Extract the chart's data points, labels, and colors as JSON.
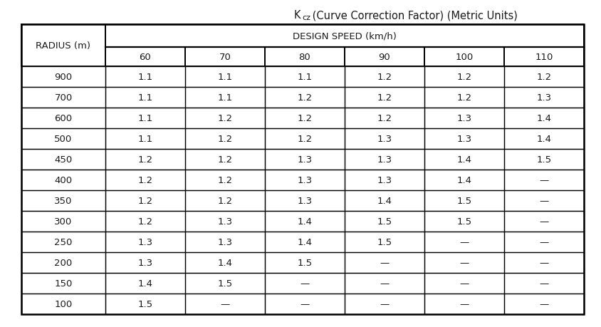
{
  "title_parts": [
    "K",
    "cz",
    " (Curve Correction Factor) (Metric Units)"
  ],
  "header_row1": "DESIGN SPEED (km/h)",
  "header_col": "RADIUS (m)",
  "speed_headers": [
    "60",
    "70",
    "80",
    "90",
    "100",
    "110"
  ],
  "radii": [
    "900",
    "700",
    "600",
    "500",
    "450",
    "400",
    "350",
    "300",
    "250",
    "200",
    "150",
    "100"
  ],
  "table_data": [
    [
      "1.1",
      "1.1",
      "1.1",
      "1.2",
      "1.2",
      "1.2"
    ],
    [
      "1.1",
      "1.1",
      "1.2",
      "1.2",
      "1.2",
      "1.3"
    ],
    [
      "1.1",
      "1.2",
      "1.2",
      "1.2",
      "1.3",
      "1.4"
    ],
    [
      "1.1",
      "1.2",
      "1.2",
      "1.3",
      "1.3",
      "1.4"
    ],
    [
      "1.2",
      "1.2",
      "1.3",
      "1.3",
      "1.4",
      "1.5"
    ],
    [
      "1.2",
      "1.2",
      "1.3",
      "1.3",
      "1.4",
      "—"
    ],
    [
      "1.2",
      "1.2",
      "1.3",
      "1.4",
      "1.5",
      "—"
    ],
    [
      "1.2",
      "1.3",
      "1.4",
      "1.5",
      "1.5",
      "—"
    ],
    [
      "1.3",
      "1.3",
      "1.4",
      "1.5",
      "—",
      "—"
    ],
    [
      "1.3",
      "1.4",
      "1.5",
      "—",
      "—",
      "—"
    ],
    [
      "1.4",
      "1.5",
      "—",
      "—",
      "—",
      "—"
    ],
    [
      "1.5",
      "—",
      "—",
      "—",
      "—",
      "—"
    ]
  ],
  "bg_color": "#ffffff",
  "text_color": "#1a1a1a",
  "title_fontsize": 10.5,
  "header_fontsize": 9.5,
  "cell_fontsize": 9.5
}
